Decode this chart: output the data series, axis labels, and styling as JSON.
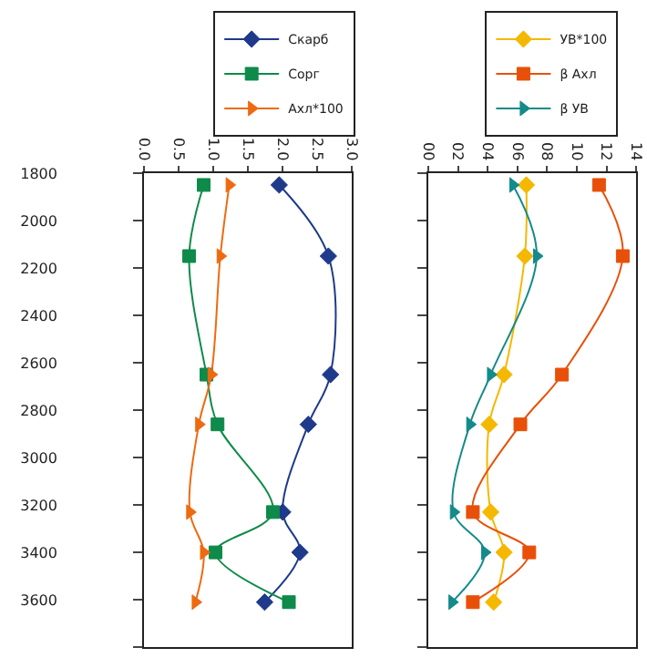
{
  "chart_data": [
    {
      "type": "line",
      "orientation": "horizontal",
      "x": [
        1850,
        2150,
        2650,
        2860,
        3230,
        3400,
        3610
      ],
      "ylim": [
        3800,
        1800
      ],
      "yticks": [
        1800,
        2000,
        2200,
        2400,
        2600,
        2800,
        3000,
        3200,
        3400,
        3600,
        {
          "value": 3800,
          "label": null
        }
      ],
      "xlim": [
        0,
        3
      ],
      "xticks": [
        {
          "value": 0,
          "label": "0.0"
        },
        {
          "value": 0.5,
          "label": "0.5"
        },
        {
          "value": 1,
          "label": "1.0"
        },
        {
          "value": 1.5,
          "label": "1.5"
        },
        {
          "value": 2,
          "label": "2.0"
        },
        {
          "value": 2.5,
          "label": "2.5"
        },
        {
          "value": 3,
          "label": "3.0"
        }
      ],
      "legend": "top",
      "series": [
        {
          "name": "Скарб",
          "color": "#1f3a8a",
          "marker": "diamond",
          "values": [
            1.95,
            2.66,
            2.69,
            2.37,
            2.0,
            2.25,
            1.74
          ]
        },
        {
          "name": "Сорг",
          "color": "#0e8a4a",
          "marker": "square",
          "values": [
            0.86,
            0.65,
            0.9,
            1.06,
            1.86,
            1.03,
            2.09
          ]
        },
        {
          "name": "Ахл*100",
          "color": "#ee6a10",
          "marker": "triangle",
          "values": [
            1.23,
            1.1,
            0.97,
            0.79,
            0.66,
            0.86,
            0.74
          ]
        }
      ]
    },
    {
      "type": "line",
      "orientation": "horizontal",
      "x": [
        1850,
        2150,
        2650,
        2860,
        3230,
        3400,
        3610
      ],
      "ylim": [
        3800,
        1800
      ],
      "yticks": [
        {
          "value": 1800,
          "label": null
        },
        {
          "value": 2000,
          "label": null
        },
        {
          "value": 2200,
          "label": null
        },
        {
          "value": 2400,
          "label": null
        },
        {
          "value": 2600,
          "label": null
        },
        {
          "value": 2800,
          "label": null
        },
        {
          "value": 3000,
          "label": null
        },
        {
          "value": 3200,
          "label": null
        },
        {
          "value": 3400,
          "label": null
        },
        {
          "value": 3600,
          "label": null
        },
        {
          "value": 3800,
          "label": null
        }
      ],
      "xlim": [
        0,
        14
      ],
      "xticks": [
        {
          "value": 0,
          "label": "00"
        },
        {
          "value": 2,
          "label": "02"
        },
        {
          "value": 4,
          "label": "04"
        },
        {
          "value": 6,
          "label": "06"
        },
        {
          "value": 8,
          "label": "08"
        },
        {
          "value": 10,
          "label": "10"
        },
        {
          "value": 12,
          "label": "12"
        },
        {
          "value": 14,
          "label": "14"
        }
      ],
      "tick_labels": "x",
      "legend": "top",
      "series": [
        {
          "name": "УВ*100",
          "color": "#f5b800",
          "marker": "diamond",
          "values": [
            6.6,
            6.5,
            5.1,
            4.1,
            4.2,
            5.1,
            4.4
          ]
        },
        {
          "name": "β Ахл",
          "color": "#e8500a",
          "marker": "square",
          "values": [
            11.5,
            13.1,
            9.0,
            6.2,
            3.0,
            6.8,
            3.0
          ]
        },
        {
          "name": "β УВ",
          "color": "#148a8a",
          "marker": "triangle",
          "values": [
            5.7,
            7.3,
            4.2,
            2.8,
            1.7,
            3.8,
            1.6
          ]
        }
      ]
    }
  ]
}
